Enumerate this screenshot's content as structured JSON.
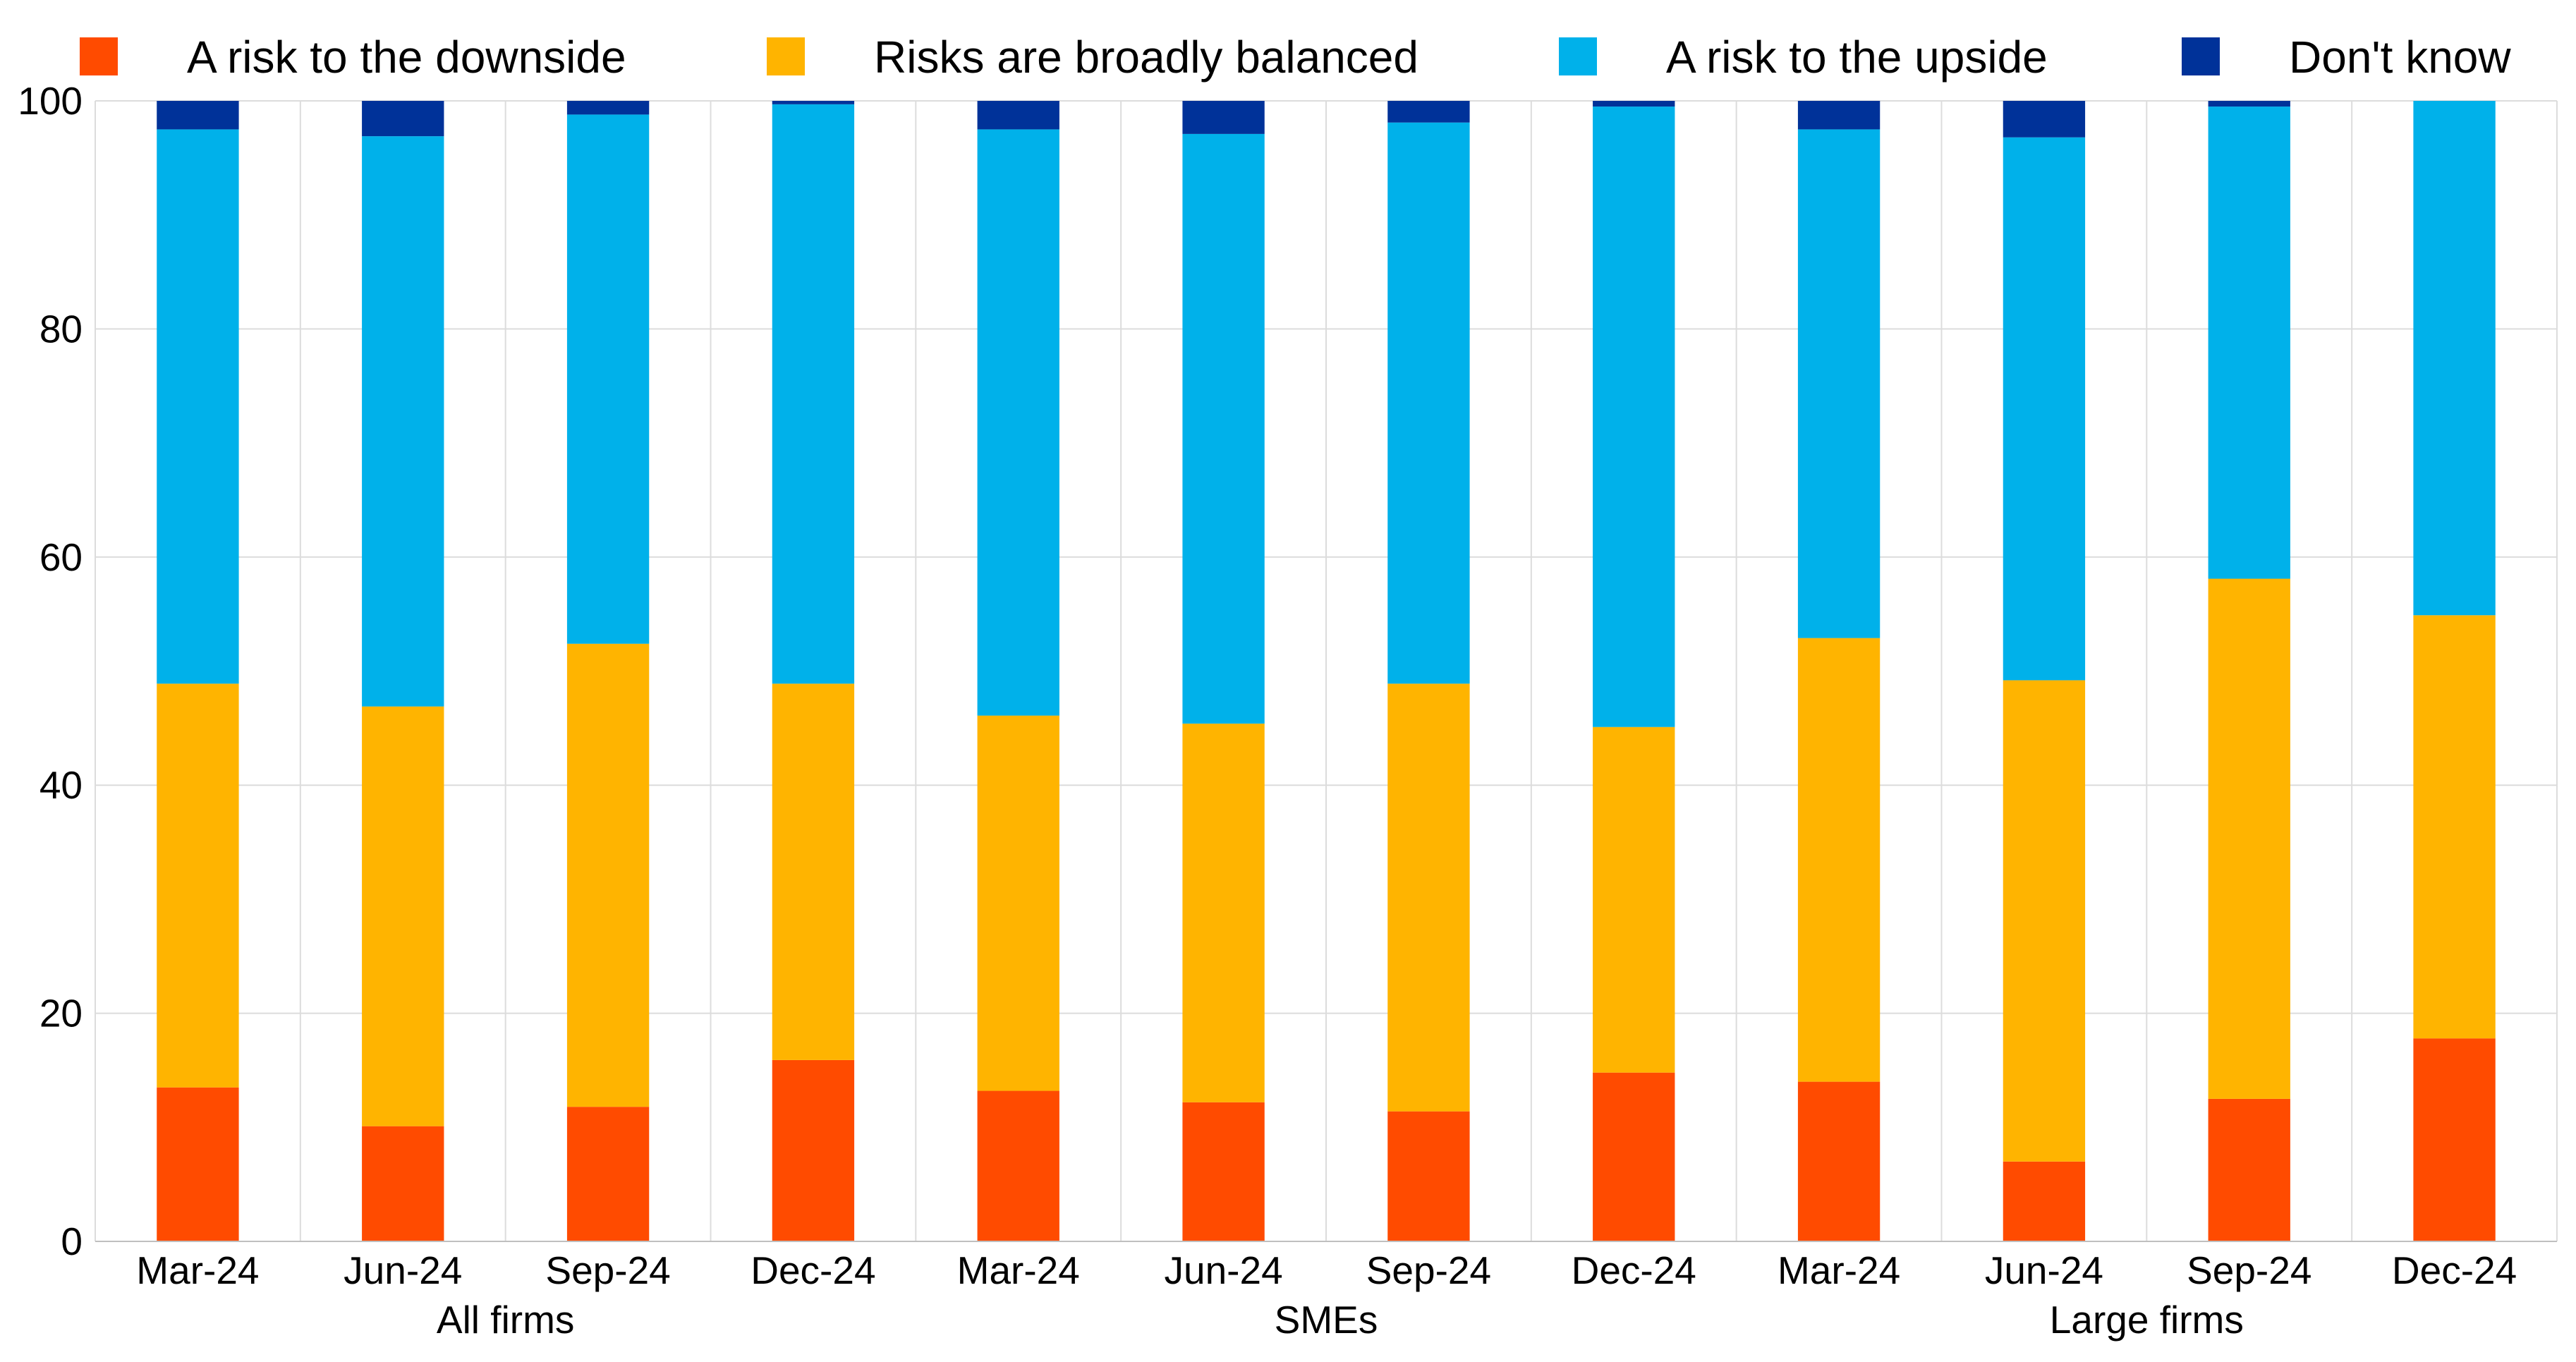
{
  "chart_data": {
    "type": "bar",
    "stacked": true,
    "categories": [
      "Mar-24",
      "Jun-24",
      "Sep-24",
      "Dec-24",
      "Mar-24",
      "Jun-24",
      "Sep-24",
      "Dec-24",
      "Mar-24",
      "Jun-24",
      "Sep-24",
      "Dec-24"
    ],
    "groups": [
      {
        "label": "All firms",
        "categories": [
          "Mar-24",
          "Jun-24",
          "Sep-24",
          "Dec-24"
        ]
      },
      {
        "label": "SMEs",
        "categories": [
          "Mar-24",
          "Jun-24",
          "Sep-24",
          "Dec-24"
        ]
      },
      {
        "label": "Large firms",
        "categories": [
          "Mar-24",
          "Jun-24",
          "Sep-24",
          "Dec-24"
        ]
      }
    ],
    "series": [
      {
        "name": "A risk to the downside",
        "color": "#FF4B00",
        "values": [
          13.5,
          10.1,
          11.8,
          15.9,
          13.2,
          12.2,
          11.4,
          14.8,
          14.0,
          7.0,
          12.5,
          17.8
        ]
      },
      {
        "name": "Risks are broadly balanced",
        "color": "#FFB400",
        "values": [
          35.4,
          36.8,
          40.6,
          33.0,
          32.9,
          33.2,
          37.5,
          30.3,
          38.9,
          42.2,
          45.6,
          37.1
        ]
      },
      {
        "name": "A risk to the upside",
        "color": "#00B1EA",
        "values": [
          48.6,
          50.0,
          46.4,
          50.8,
          51.4,
          51.7,
          49.2,
          54.4,
          44.6,
          47.6,
          41.4,
          45.1
        ]
      },
      {
        "name": "Don't know",
        "color": "#003299",
        "values": [
          2.5,
          3.1,
          1.2,
          0.3,
          2.5,
          2.9,
          1.9,
          0.5,
          2.5,
          3.2,
          0.5,
          0.0
        ]
      }
    ],
    "yticks": [
      0,
      20,
      40,
      60,
      80,
      100
    ],
    "ylim": [
      0,
      100
    ],
    "grid": true,
    "legend_position": "top"
  }
}
